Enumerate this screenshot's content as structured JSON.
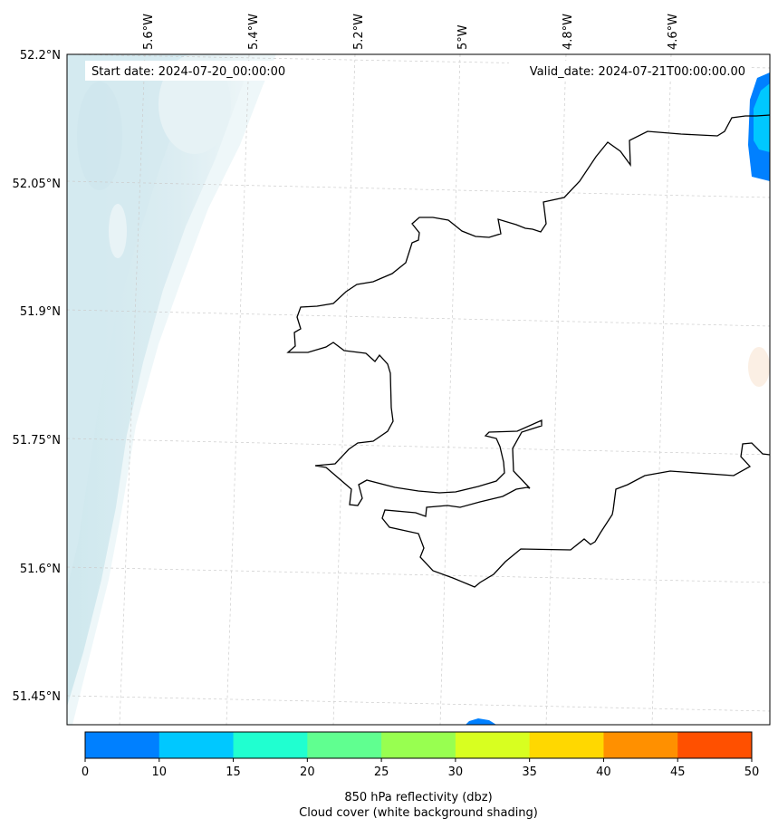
{
  "map": {
    "start_label": "Start date: 2024-07-20_00:00:00",
    "valid_label": "Valid_date: 2024-07-21T00:00:00.00",
    "lon_labels": [
      "5.6°W",
      "5.4°W",
      "5.2°W",
      "5°W",
      "4.8°W",
      "4.6°W"
    ],
    "lat_labels": [
      "52.2°N",
      "52.05°N",
      "51.9°N",
      "51.75°N",
      "51.6°N",
      "51.45°N"
    ]
  },
  "colorbar": {
    "ticks": [
      "0",
      "10",
      "15",
      "20",
      "25",
      "30",
      "35",
      "40",
      "45",
      "50"
    ],
    "colors": [
      "#0080ff",
      "#00c8ff",
      "#20ffd0",
      "#60ff90",
      "#98ff50",
      "#d8ff20",
      "#ffd800",
      "#ff9000",
      "#ff5000"
    ],
    "label_line1": "850 hPa reflectivity (dbz)",
    "label_line2": "Cloud cover (white background shading)"
  }
}
